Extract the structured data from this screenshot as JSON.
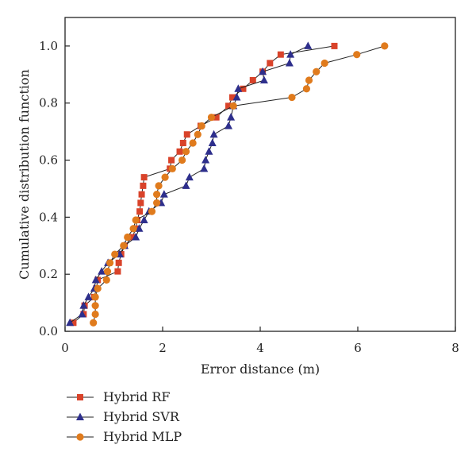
{
  "chart_data": {
    "type": "scatter",
    "xlabel": "Error distance (m)",
    "ylabel": "Cumulative distribution function",
    "xlim": [
      0,
      8
    ],
    "ylim": [
      0,
      1.1
    ],
    "xticks": [
      "0",
      "2",
      "4",
      "6",
      "8"
    ],
    "yticks": [
      "0.0",
      "0.2",
      "0.4",
      "0.6",
      "0.8",
      "1.0"
    ],
    "grid": false,
    "legend_position": "bottom-left, outside plot",
    "series": [
      {
        "name": "Hybrid RF",
        "marker": "square",
        "color": "#d9432a",
        "points": [
          [
            0.17,
            0.03
          ],
          [
            0.38,
            0.06
          ],
          [
            0.4,
            0.09
          ],
          [
            0.6,
            0.12
          ],
          [
            0.64,
            0.15
          ],
          [
            0.67,
            0.18
          ],
          [
            1.08,
            0.21
          ],
          [
            1.1,
            0.24
          ],
          [
            1.15,
            0.27
          ],
          [
            1.22,
            0.3
          ],
          [
            1.38,
            0.33
          ],
          [
            1.45,
            0.36
          ],
          [
            1.48,
            0.39
          ],
          [
            1.53,
            0.42
          ],
          [
            1.55,
            0.45
          ],
          [
            1.57,
            0.48
          ],
          [
            1.6,
            0.51
          ],
          [
            1.62,
            0.54
          ],
          [
            2.15,
            0.57
          ],
          [
            2.18,
            0.6
          ],
          [
            2.35,
            0.63
          ],
          [
            2.42,
            0.66
          ],
          [
            2.5,
            0.69
          ],
          [
            2.78,
            0.72
          ],
          [
            3.1,
            0.75
          ],
          [
            3.35,
            0.79
          ],
          [
            3.43,
            0.82
          ],
          [
            3.65,
            0.85
          ],
          [
            3.85,
            0.88
          ],
          [
            4.05,
            0.91
          ],
          [
            4.2,
            0.94
          ],
          [
            4.42,
            0.97
          ],
          [
            5.52,
            1.0
          ]
        ]
      },
      {
        "name": "Hybrid SVR",
        "marker": "triangle",
        "color": "#2e2f8c",
        "points": [
          [
            0.1,
            0.03
          ],
          [
            0.35,
            0.06
          ],
          [
            0.38,
            0.09
          ],
          [
            0.48,
            0.12
          ],
          [
            0.6,
            0.15
          ],
          [
            0.63,
            0.18
          ],
          [
            0.75,
            0.21
          ],
          [
            0.88,
            0.24
          ],
          [
            1.12,
            0.27
          ],
          [
            1.22,
            0.3
          ],
          [
            1.45,
            0.33
          ],
          [
            1.52,
            0.36
          ],
          [
            1.62,
            0.39
          ],
          [
            1.72,
            0.42
          ],
          [
            1.97,
            0.45
          ],
          [
            2.03,
            0.48
          ],
          [
            2.48,
            0.51
          ],
          [
            2.55,
            0.54
          ],
          [
            2.85,
            0.57
          ],
          [
            2.88,
            0.6
          ],
          [
            2.95,
            0.63
          ],
          [
            3.02,
            0.66
          ],
          [
            3.05,
            0.69
          ],
          [
            3.35,
            0.72
          ],
          [
            3.4,
            0.75
          ],
          [
            3.45,
            0.79
          ],
          [
            3.52,
            0.82
          ],
          [
            3.55,
            0.85
          ],
          [
            4.08,
            0.88
          ],
          [
            4.05,
            0.91
          ],
          [
            4.6,
            0.94
          ],
          [
            4.62,
            0.97
          ],
          [
            4.98,
            1.0
          ]
        ]
      },
      {
        "name": "Hybrid MLP",
        "marker": "circle",
        "color": "#e07b1d",
        "points": [
          [
            0.58,
            0.03
          ],
          [
            0.62,
            0.06
          ],
          [
            0.62,
            0.09
          ],
          [
            0.62,
            0.12
          ],
          [
            0.67,
            0.15
          ],
          [
            0.85,
            0.18
          ],
          [
            0.87,
            0.21
          ],
          [
            0.92,
            0.24
          ],
          [
            1.02,
            0.27
          ],
          [
            1.2,
            0.3
          ],
          [
            1.28,
            0.33
          ],
          [
            1.4,
            0.36
          ],
          [
            1.45,
            0.39
          ],
          [
            1.78,
            0.42
          ],
          [
            1.88,
            0.45
          ],
          [
            1.88,
            0.48
          ],
          [
            1.92,
            0.51
          ],
          [
            2.05,
            0.54
          ],
          [
            2.2,
            0.57
          ],
          [
            2.4,
            0.6
          ],
          [
            2.48,
            0.63
          ],
          [
            2.62,
            0.66
          ],
          [
            2.72,
            0.69
          ],
          [
            2.8,
            0.72
          ],
          [
            3.0,
            0.75
          ],
          [
            3.45,
            0.79
          ],
          [
            4.65,
            0.82
          ],
          [
            4.95,
            0.85
          ],
          [
            5.0,
            0.88
          ],
          [
            5.15,
            0.91
          ],
          [
            5.32,
            0.94
          ],
          [
            5.98,
            0.97
          ],
          [
            6.55,
            1.0
          ]
        ]
      }
    ]
  }
}
